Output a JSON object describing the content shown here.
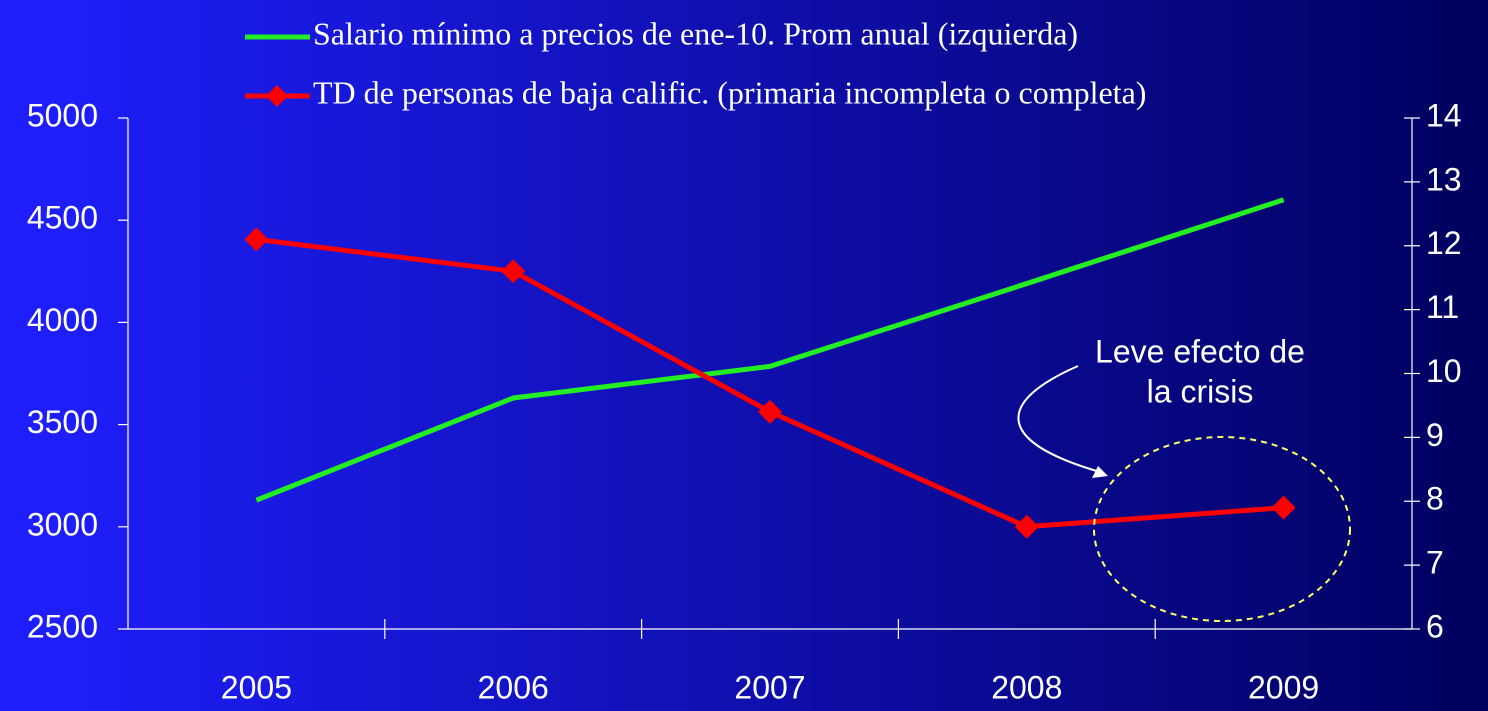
{
  "chart_data": {
    "type": "line",
    "categories": [
      "2005",
      "2006",
      "2007",
      "2008",
      "2009"
    ],
    "series": [
      {
        "name": "Salario mínimo a precios de ene-10. Prom anual (izquierda)",
        "color": "#22ee22",
        "values": [
          3130,
          3630,
          3785,
          4190,
          4600
        ]
      },
      {
        "name": "TD de personas de baja calific. (primaria incompleta o completa)",
        "color": "#ff0000",
        "values": [
          12.1,
          11.6,
          9.4,
          7.6,
          7.9
        ],
        "axis": "y2",
        "marker": "diamond"
      }
    ],
    "ylim": [
      2500,
      5000
    ],
    "yticks": [
      2500,
      3000,
      3500,
      4000,
      4500,
      5000
    ],
    "y2lim": [
      6,
      14
    ],
    "y2ticks": [
      6,
      7,
      8,
      9,
      10,
      11,
      12,
      13,
      14
    ],
    "annotation": [
      "Leve efecto de",
      "la crisis"
    ]
  }
}
